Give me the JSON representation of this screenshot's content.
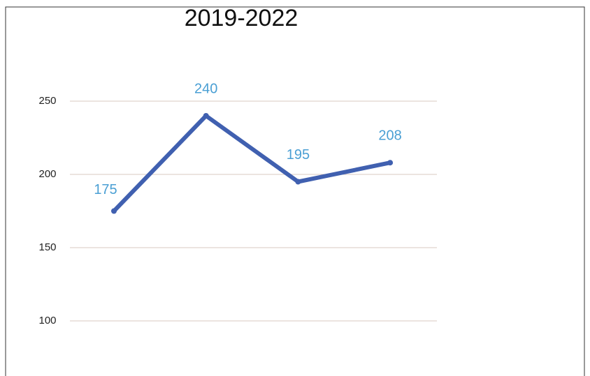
{
  "chart_data": {
    "type": "line",
    "title": "2019-2022",
    "categories": [
      null,
      null,
      null,
      null
    ],
    "values": [
      175,
      240,
      195,
      208
    ],
    "color": "#4060b0",
    "ylim": [
      100,
      250
    ],
    "yticks": [
      100,
      150,
      200,
      250
    ],
    "grid": true
  }
}
